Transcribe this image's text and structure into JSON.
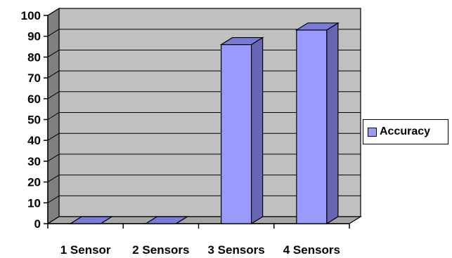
{
  "chart_data": {
    "type": "bar",
    "title": "",
    "xlabel": "",
    "ylabel": "",
    "categories": [
      "1 Sensor",
      "2 Sensors",
      "3 Sensors",
      "4 Sensors"
    ],
    "series": [
      {
        "name": "Accuracy",
        "values": [
          0,
          0,
          86,
          93
        ]
      }
    ],
    "ylim": [
      0,
      100
    ],
    "yticks": [
      0,
      10,
      20,
      30,
      40,
      50,
      60,
      70,
      80,
      90,
      100
    ],
    "grid": true,
    "style": "3d-column",
    "legend_position": "right",
    "colors": {
      "bar_front": "#9999FF",
      "bar_side": "#6666B3",
      "bar_top": "#7A7AD9",
      "plot_wall": "#C0C0C0",
      "side_wall": "#808080",
      "floor": "#A6A6A6"
    }
  }
}
